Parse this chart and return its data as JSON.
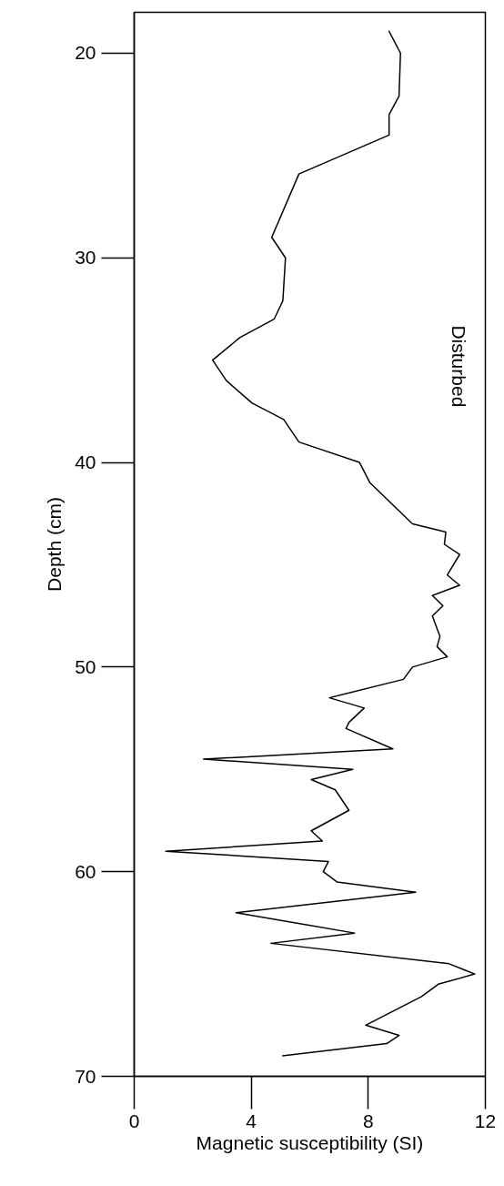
{
  "chart_data": {
    "type": "line",
    "xlabel": "Magnetic susceptibility (SI)",
    "ylabel": "Depth (cm)",
    "annotations": [
      "Disturbed"
    ],
    "series": [
      {
        "color": "#000000",
        "x": [
          8.7,
          9.1,
          9.05,
          8.71,
          8.71,
          5.63,
          4.7,
          5.17,
          5.08,
          4.78,
          3.61,
          2.68,
          3.15,
          4.03,
          5.11,
          5.63,
          7.7,
          8.06,
          9.51,
          10.65,
          10.6,
          11.12,
          10.7,
          11.12,
          10.19,
          10.55,
          10.19,
          10.45,
          10.35,
          10.7,
          9.51,
          9.2,
          6.67,
          7.86,
          7.34,
          7.24,
          8.84,
          2.37,
          7.47,
          6.05,
          6.87,
          7.34,
          6.05,
          6.43,
          1.08,
          6.64,
          6.46,
          6.93,
          9.62,
          3.48,
          7.53,
          4.67,
          10.76,
          11.64,
          10.39,
          9.82,
          7.91,
          9.05,
          8.63,
          5.06
        ],
        "values": [
          18.9,
          20.0,
          22.1,
          23.0,
          24.0,
          25.9,
          29.0,
          30.0,
          32.1,
          33.0,
          33.9,
          35.0,
          36.0,
          37.1,
          37.9,
          39.0,
          40.0,
          41.0,
          43.0,
          43.4,
          44.0,
          44.5,
          45.5,
          46.0,
          46.5,
          47.0,
          47.5,
          48.5,
          49.0,
          49.5,
          50.0,
          50.6,
          51.5,
          52.0,
          52.7,
          53.0,
          54.0,
          54.5,
          55.0,
          55.5,
          56.0,
          57.0,
          58.0,
          58.5,
          59.0,
          59.5,
          60.0,
          60.5,
          61.0,
          62.0,
          63.0,
          63.5,
          64.5,
          65.0,
          65.5,
          66.1,
          67.5,
          68.0,
          68.4,
          69.0
        ]
      }
    ],
    "xlim": [
      0,
      12
    ],
    "xticks": [
      0,
      4,
      8,
      12
    ],
    "ylim": [
      70,
      18
    ],
    "yticks": [
      20,
      30,
      40,
      50,
      60,
      70
    ],
    "grid": false,
    "marker": "none",
    "line_style": "solid"
  }
}
